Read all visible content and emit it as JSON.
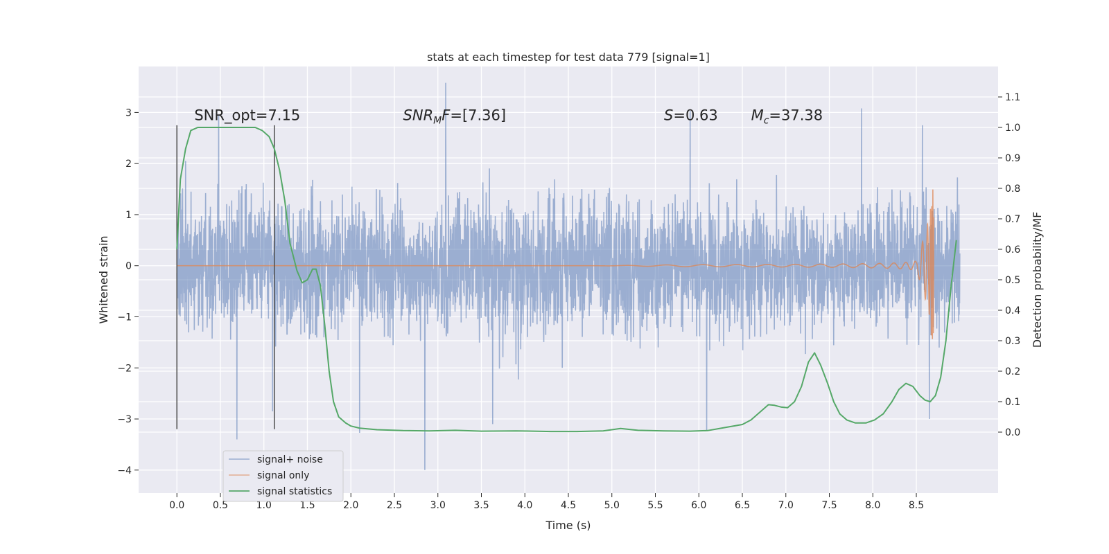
{
  "chart_data": {
    "type": "line",
    "title": "stats at each timestep for test data 779 [signal=1]",
    "xlabel": "Time (s)",
    "ylabel": "Whitened strain",
    "y2label": "Detection probability/MF",
    "xlim": [
      -0.44,
      9.44
    ],
    "ylim": [
      -4.45,
      3.9
    ],
    "y2lim": [
      -0.2,
      1.2
    ],
    "xticks": [
      0.0,
      0.5,
      1.0,
      1.5,
      2.0,
      2.5,
      3.0,
      3.5,
      4.0,
      4.5,
      5.0,
      5.5,
      6.0,
      6.5,
      7.0,
      7.5,
      8.0,
      8.5
    ],
    "xtick_labels": [
      "0.0",
      "0.5",
      "1.0",
      "1.5",
      "2.0",
      "2.5",
      "3.0",
      "3.5",
      "4.0",
      "4.5",
      "5.0",
      "5.5",
      "6.0",
      "6.5",
      "7.0",
      "7.5",
      "8.0",
      "8.5"
    ],
    "yticks": [
      3,
      2,
      1,
      0,
      -1,
      -2,
      -3,
      -4
    ],
    "ytick_labels": [
      "3",
      "2",
      "1",
      "0",
      "−1",
      "−2",
      "−3",
      "−4"
    ],
    "y2ticks": [
      1.1,
      1.0,
      0.9,
      0.8,
      0.7,
      0.6,
      0.5,
      0.4,
      0.3,
      0.2,
      0.1,
      0.0
    ],
    "y2tick_labels": [
      "1.1",
      "1.0",
      "0.9",
      "0.8",
      "0.7",
      "0.6",
      "0.5",
      "0.4",
      "0.3",
      "0.2",
      "0.1",
      "0.0"
    ],
    "grid": true,
    "legend_position": "lower-left",
    "series": [
      {
        "name": "signal+ noise",
        "color": "#4c72b0",
        "description": "dense whitened noise, mostly within ±1.6, sampled 0.0 to 9.0 s",
        "noise_envelope": [
          -1.6,
          1.6
        ],
        "spikes": [
          {
            "t": 0.69,
            "v": -3.4
          },
          {
            "t": 0.48,
            "v": 2.95
          },
          {
            "t": 0.1,
            "v": 2.05
          },
          {
            "t": 1.1,
            "v": -2.85
          },
          {
            "t": 2.1,
            "v": -3.27
          },
          {
            "t": 2.85,
            "v": -4.0
          },
          {
            "t": 3.09,
            "v": 3.58
          },
          {
            "t": 3.63,
            "v": -3.1
          },
          {
            "t": 5.9,
            "v": 3.03
          },
          {
            "t": 6.09,
            "v": -3.22
          },
          {
            "t": 7.87,
            "v": 3.08
          },
          {
            "t": 8.65,
            "v": -3.0
          },
          {
            "t": 8.57,
            "v": 2.75
          }
        ]
      },
      {
        "name": "signal only",
        "color": "#dd8452",
        "description": "chirp waveform, flat near 0 until ~5 s, growing to ±1.5 at merger ~8.68 s"
      },
      {
        "name": "signal statistics",
        "color": "#55a868",
        "axis": "right",
        "t": [
          0.0,
          0.04,
          0.1,
          0.16,
          0.24,
          0.35,
          0.5,
          0.7,
          0.9,
          0.98,
          1.06,
          1.12,
          1.18,
          1.24,
          1.3,
          1.38,
          1.44,
          1.5,
          1.56,
          1.6,
          1.65,
          1.7,
          1.75,
          1.8,
          1.86,
          1.94,
          2.0,
          2.1,
          2.3,
          2.6,
          2.9,
          3.2,
          3.5,
          3.9,
          4.3,
          4.6,
          4.9,
          5.1,
          5.3,
          5.6,
          5.9,
          6.1,
          6.3,
          6.5,
          6.6,
          6.7,
          6.8,
          6.87,
          6.95,
          7.02,
          7.1,
          7.18,
          7.26,
          7.33,
          7.4,
          7.48,
          7.55,
          7.62,
          7.7,
          7.8,
          7.92,
          8.02,
          8.12,
          8.22,
          8.3,
          8.38,
          8.46,
          8.54,
          8.6,
          8.66,
          8.72,
          8.78,
          8.84,
          8.9,
          8.96
        ],
        "values": [
          0.6,
          0.83,
          0.93,
          0.99,
          1.0,
          1.0,
          1.0,
          1.0,
          1.0,
          0.99,
          0.97,
          0.93,
          0.86,
          0.76,
          0.62,
          0.53,
          0.49,
          0.5,
          0.535,
          0.535,
          0.48,
          0.35,
          0.2,
          0.1,
          0.05,
          0.03,
          0.02,
          0.013,
          0.008,
          0.005,
          0.004,
          0.006,
          0.003,
          0.004,
          0.002,
          0.002,
          0.004,
          0.012,
          0.006,
          0.004,
          0.003,
          0.005,
          0.015,
          0.025,
          0.04,
          0.065,
          0.09,
          0.088,
          0.082,
          0.08,
          0.1,
          0.15,
          0.23,
          0.26,
          0.22,
          0.16,
          0.1,
          0.06,
          0.04,
          0.03,
          0.03,
          0.04,
          0.06,
          0.1,
          0.14,
          0.16,
          0.15,
          0.12,
          0.105,
          0.1,
          0.12,
          0.18,
          0.3,
          0.48,
          0.63
        ]
      }
    ],
    "vlines": [
      {
        "x": 0.0,
        "y_range": [
          -3.2,
          2.75
        ],
        "color": "#4d4d4d"
      },
      {
        "x": 1.12,
        "y_range": [
          -3.2,
          2.75
        ],
        "color": "#4d4d4d"
      }
    ],
    "annotations": [
      {
        "id": "snr_opt",
        "text": "SNR_opt=7.15",
        "x": 0.2,
        "y": 2.85
      },
      {
        "id": "snr_mf",
        "italic": "SNR",
        "sub": "M",
        "italic_tail": "F",
        "suffix": "=[7.36]",
        "x": 2.6,
        "y": 2.85
      },
      {
        "id": "s",
        "italic": "S",
        "suffix": "=0.63",
        "x": 5.6,
        "y": 2.85
      },
      {
        "id": "mc",
        "italic": "M",
        "sub": "c",
        "suffix": "=37.38",
        "x": 6.6,
        "y": 2.85
      }
    ]
  }
}
